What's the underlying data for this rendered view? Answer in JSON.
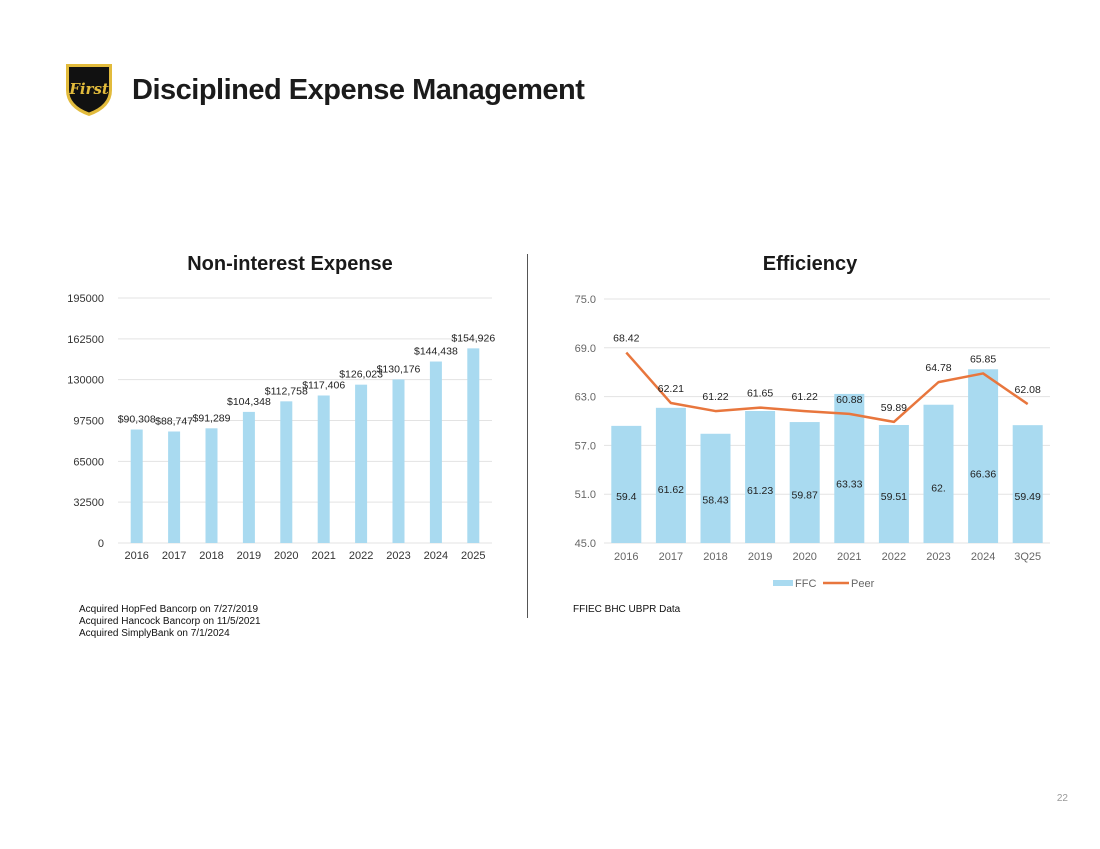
{
  "slide": {
    "title": "Disciplined Expense Management",
    "logo_text": "First",
    "page_number": "22",
    "notes": [
      "Acquired HopFed Bancorp on 7/27/2019",
      "Acquired Hancock Bancorp on 11/5/2021",
      "Acquired SimplyBank on 7/1/2024"
    ],
    "source": "FFIEC BHC UBPR Data"
  },
  "colors": {
    "bar": "#a9daf0",
    "line": "#e8763d",
    "grid": "#e3e3e3",
    "logo_black": "#111111",
    "logo_gold": "#e2bb3c"
  },
  "chart_data": [
    {
      "type": "bar",
      "title": "Non-interest Expense",
      "categories": [
        "2016",
        "2017",
        "2018",
        "2019",
        "2020",
        "2021",
        "2022",
        "2023",
        "2024",
        "2025"
      ],
      "values": [
        90308,
        88747,
        91289,
        104348,
        112758,
        117406,
        126023,
        130176,
        144438,
        154926
      ],
      "data_labels": [
        "$90,308",
        "$88,747",
        "$91,289",
        "$104,348",
        "$112,758",
        "$117,406",
        "$126,023",
        "$130,176",
        "$144,438",
        "$154,926"
      ],
      "yticks": [
        "0",
        "32500",
        "65000",
        "97500",
        "130000",
        "162500",
        "195000"
      ],
      "ylim": [
        0,
        195000
      ],
      "grid": true,
      "legend": "none"
    },
    {
      "type": "bar+line",
      "title": "Efficiency",
      "categories": [
        "2016",
        "2017",
        "2018",
        "2019",
        "2020",
        "2021",
        "2022",
        "2023",
        "2024",
        "3Q25"
      ],
      "series": [
        {
          "name": "FFC",
          "type": "bar",
          "values": [
            59.4,
            61.62,
            58.43,
            61.23,
            59.87,
            63.33,
            59.51,
            62,
            66.36,
            59.49
          ],
          "data_labels": [
            "59.4",
            "61.62",
            "58.43",
            "61.23",
            "59.87",
            "63.33",
            "59.51",
            "62.",
            "66.36",
            "59.49"
          ]
        },
        {
          "name": "Peer",
          "type": "line",
          "values": [
            68.42,
            62.21,
            61.22,
            61.65,
            61.22,
            60.88,
            59.89,
            64.78,
            65.85,
            62.08
          ],
          "data_labels": [
            "68.42",
            "62.21",
            "61.22",
            "61.65",
            "61.22",
            "60.88",
            "59.89",
            "64.78",
            "65.85",
            "62.08"
          ]
        }
      ],
      "yticks": [
        "45.0",
        "51.0",
        "57.0",
        "63.0",
        "69.0",
        "75.0"
      ],
      "ylim": [
        45,
        75
      ],
      "grid": true,
      "legend": "bottom"
    }
  ]
}
